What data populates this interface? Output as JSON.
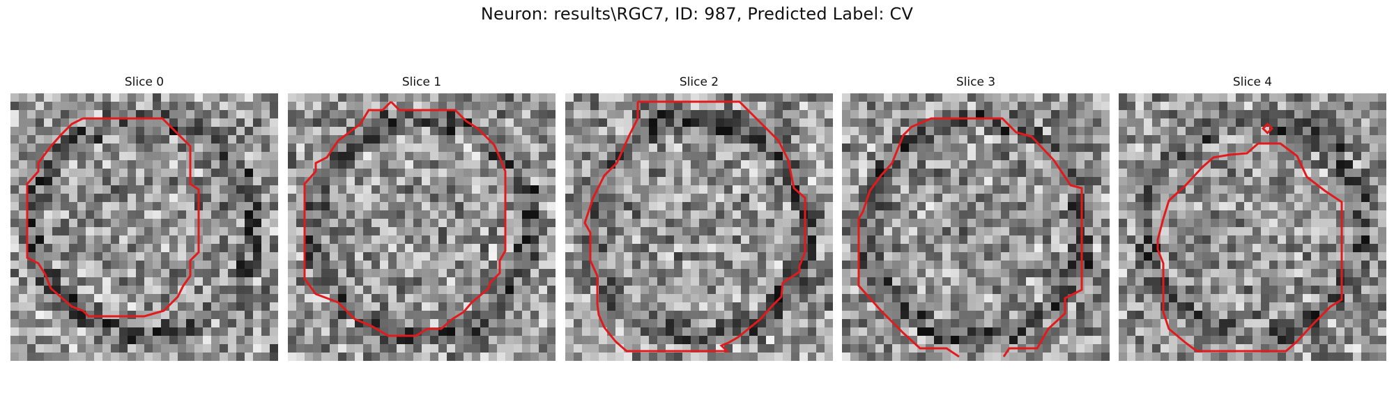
{
  "figure": {
    "title": "Neuron: results\\RGC7, ID: 987, Predicted Label: CV"
  },
  "colors": {
    "background": "#ffffff",
    "contour": "#e31a1c",
    "image_colormap": "grayscale"
  },
  "slices": [
    {
      "title": "Slice 0"
    },
    {
      "title": "Slice 1"
    },
    {
      "title": "Slice 2"
    },
    {
      "title": "Slice 3"
    },
    {
      "title": "Slice 4"
    }
  ]
}
